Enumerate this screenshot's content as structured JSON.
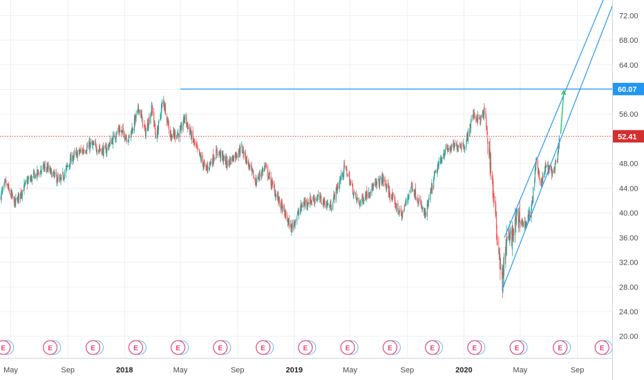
{
  "chart_data": {
    "type": "candlestick",
    "y_axis": {
      "position": "right",
      "range": [
        16.5,
        74.5
      ],
      "ticks": [
        "20.00",
        "24.00",
        "28.00",
        "32.00",
        "36.00",
        "40.00",
        "44.00",
        "48.00",
        "52.00",
        "56.00",
        "60.00",
        "64.00",
        "68.00",
        "72.00"
      ]
    },
    "x_axis": {
      "range": [
        "2017-04-08",
        "2020-11-15"
      ],
      "ticks": [
        {
          "date": "2017-05-01",
          "label": "May",
          "year": false
        },
        {
          "date": "2017-09-01",
          "label": "Sep",
          "year": false
        },
        {
          "date": "2018-01-01",
          "label": "2018",
          "year": true
        },
        {
          "date": "2018-05-01",
          "label": "May",
          "year": false
        },
        {
          "date": "2018-09-01",
          "label": "Sep",
          "year": false
        },
        {
          "date": "2019-01-01",
          "label": "2019",
          "year": true
        },
        {
          "date": "2019-05-01",
          "label": "May",
          "year": false
        },
        {
          "date": "2019-09-01",
          "label": "Sep",
          "year": false
        },
        {
          "date": "2020-01-01",
          "label": "2020",
          "year": true
        },
        {
          "date": "2020-05-01",
          "label": "May",
          "year": false
        },
        {
          "date": "2020-09-01",
          "label": "Sep",
          "year": false
        }
      ]
    },
    "grid": true,
    "price_path": [
      [
        "2017-04-08",
        42.5
      ],
      [
        "2017-04-20",
        44.8
      ],
      [
        "2017-05-10",
        41.5
      ],
      [
        "2017-06-05",
        45.0
      ],
      [
        "2017-07-15",
        47.5
      ],
      [
        "2017-08-15",
        45.0
      ],
      [
        "2017-09-10",
        49.0
      ],
      [
        "2017-10-20",
        51.0
      ],
      [
        "2017-11-20",
        50.0
      ],
      [
        "2017-12-20",
        53.5
      ],
      [
        "2018-01-10",
        52.0
      ],
      [
        "2018-02-01",
        57.0
      ],
      [
        "2018-02-15",
        53.0
      ],
      [
        "2018-03-01",
        57.0
      ],
      [
        "2018-03-10",
        52.0
      ],
      [
        "2018-03-25",
        58.5
      ],
      [
        "2018-04-10",
        52.5
      ],
      [
        "2018-05-01",
        53.0
      ],
      [
        "2018-05-10",
        55.5
      ],
      [
        "2018-06-01",
        51.0
      ],
      [
        "2018-06-25",
        47.0
      ],
      [
        "2018-07-20",
        50.0
      ],
      [
        "2018-08-10",
        48.0
      ],
      [
        "2018-09-10",
        50.5
      ],
      [
        "2018-10-10",
        45.0
      ],
      [
        "2018-10-30",
        47.5
      ],
      [
        "2018-11-20",
        43.5
      ],
      [
        "2018-12-25",
        37.5
      ],
      [
        "2019-01-20",
        41.5
      ],
      [
        "2019-02-20",
        42.5
      ],
      [
        "2019-03-20",
        41.0
      ],
      [
        "2019-04-20",
        47.5
      ],
      [
        "2019-05-10",
        43.0
      ],
      [
        "2019-05-20",
        41.5
      ],
      [
        "2019-06-10",
        43.5
      ],
      [
        "2019-07-10",
        45.5
      ],
      [
        "2019-08-05",
        41.5
      ],
      [
        "2019-08-20",
        39.5
      ],
      [
        "2019-09-10",
        44.5
      ],
      [
        "2019-09-25",
        42.0
      ],
      [
        "2019-10-10",
        39.5
      ],
      [
        "2019-10-30",
        46.0
      ],
      [
        "2019-11-20",
        50.0
      ],
      [
        "2019-12-20",
        51.0
      ],
      [
        "2020-01-05",
        51.0
      ],
      [
        "2020-01-20",
        56.0
      ],
      [
        "2020-02-05",
        55.0
      ],
      [
        "2020-02-15",
        56.5
      ],
      [
        "2020-02-21",
        52.0
      ],
      [
        "2020-03-01",
        46.0
      ],
      [
        "2020-03-10",
        38.0
      ],
      [
        "2020-03-18",
        33.0
      ],
      [
        "2020-03-23",
        28.5
      ],
      [
        "2020-04-01",
        35.0
      ],
      [
        "2020-04-15",
        36.5
      ],
      [
        "2020-04-25",
        39.5
      ],
      [
        "2020-05-10",
        38.0
      ],
      [
        "2020-05-25",
        40.5
      ],
      [
        "2020-06-05",
        48.5
      ],
      [
        "2020-06-15",
        44.5
      ],
      [
        "2020-06-25",
        47.5
      ],
      [
        "2020-07-10",
        46.5
      ],
      [
        "2020-07-20",
        48.5
      ],
      [
        "2020-07-25",
        52.4
      ]
    ],
    "current_price": {
      "value": 52.41,
      "label": "52.41",
      "color": "#d32f2f",
      "style": "dotted"
    },
    "target_line": {
      "value": 60.07,
      "label": "60.07",
      "start": "2018-05-01",
      "color": "#2196f3"
    },
    "channel": {
      "color": "#2196f3",
      "upper": [
        [
          "2020-03-28",
          36.0
        ],
        [
          "2020-11-15",
          78.0
        ]
      ],
      "lower": [
        [
          "2020-03-23",
          27.5
        ],
        [
          "2020-11-15",
          73.5
        ]
      ]
    },
    "projection_arrow": {
      "from": [
        "2020-07-27",
        52.8
      ],
      "to": [
        "2020-08-03",
        59.8
      ],
      "color": "#22c55e"
    },
    "earnings_markers": {
      "letter": "E",
      "dates": [
        "2017-04-15",
        "2017-07-25",
        "2017-10-25",
        "2018-01-25",
        "2018-04-26",
        "2018-07-26",
        "2018-10-26",
        "2019-01-25",
        "2019-04-26",
        "2019-07-26",
        "2019-10-25",
        "2020-01-24",
        "2020-04-24",
        "2020-07-26",
        "2020-10-24"
      ],
      "color": "#e0457b"
    },
    "colors": {
      "up": "#26a69a",
      "down": "#ef5350",
      "grid": "#eceff3",
      "axis_text": "#4a4a4a"
    }
  }
}
